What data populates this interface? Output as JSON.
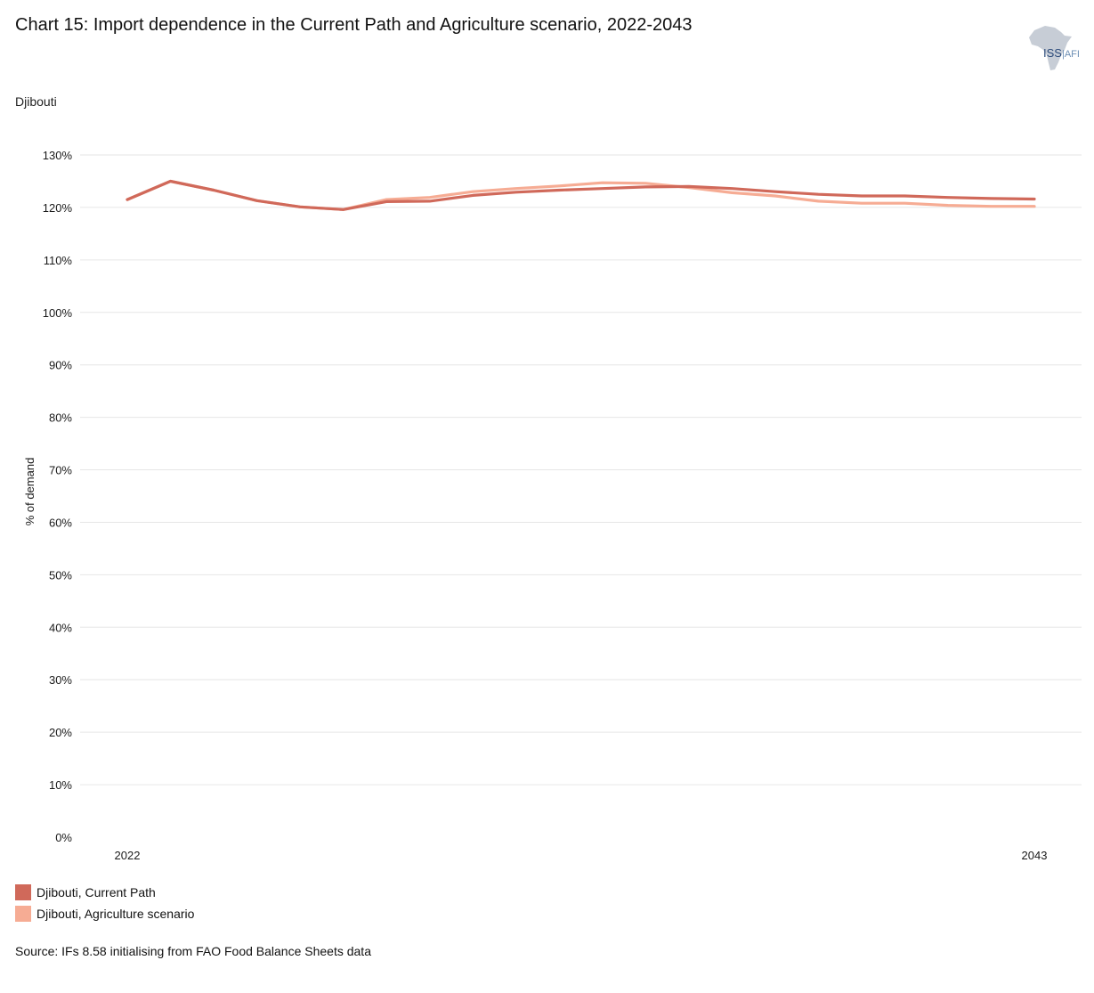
{
  "header": {
    "title": "Chart 15: Import dependence in the Current Path and Agriculture scenario, 2022-2043",
    "subtitle": "Djibouti",
    "logo_text": "ISS",
    "logo_suffix": "AFI"
  },
  "colors": {
    "current_path": "#d0695a",
    "agriculture": "#f6ac94",
    "grid": "#e6e6e6",
    "logo_map": "#c7cdd6"
  },
  "chart_data": {
    "type": "line",
    "title": "Chart 15: Import dependence in the Current Path and Agriculture scenario, 2022-2043",
    "subtitle": "Djibouti",
    "xlabel": "",
    "ylabel": "% of demand",
    "ylim": [
      0,
      130
    ],
    "yticks": [
      0,
      10,
      20,
      30,
      40,
      50,
      60,
      70,
      80,
      90,
      100,
      110,
      120,
      130
    ],
    "ytick_labels": [
      "0%",
      "10%",
      "20%",
      "30%",
      "40%",
      "50%",
      "60%",
      "70%",
      "80%",
      "90%",
      "100%",
      "110%",
      "120%",
      "130%"
    ],
    "x": [
      2022,
      2023,
      2024,
      2025,
      2026,
      2027,
      2028,
      2029,
      2030,
      2031,
      2032,
      2033,
      2034,
      2035,
      2036,
      2037,
      2038,
      2039,
      2040,
      2041,
      2042,
      2043
    ],
    "xtick_labels_shown": [
      "2022",
      "2043"
    ],
    "grid": true,
    "legend_position": "bottom-left",
    "series": [
      {
        "name": "Djibouti, Current Path",
        "color": "#d0695a",
        "values": [
          121.5,
          125.0,
          123.3,
          121.3,
          120.1,
          119.6,
          121.1,
          121.2,
          122.3,
          122.9,
          123.3,
          123.6,
          123.9,
          124.0,
          123.6,
          123.0,
          122.5,
          122.2,
          122.2,
          121.9,
          121.7,
          121.6
        ]
      },
      {
        "name": "Djibouti, Agriculture scenario",
        "color": "#f6ac94",
        "values": [
          121.5,
          125.0,
          123.3,
          121.3,
          120.1,
          119.6,
          121.5,
          121.9,
          123.0,
          123.6,
          124.1,
          124.7,
          124.6,
          123.8,
          122.8,
          122.2,
          121.2,
          120.8,
          120.8,
          120.4,
          120.2,
          120.2
        ]
      }
    ]
  },
  "source": "Source: IFs 8.58 initialising from FAO Food Balance Sheets data"
}
